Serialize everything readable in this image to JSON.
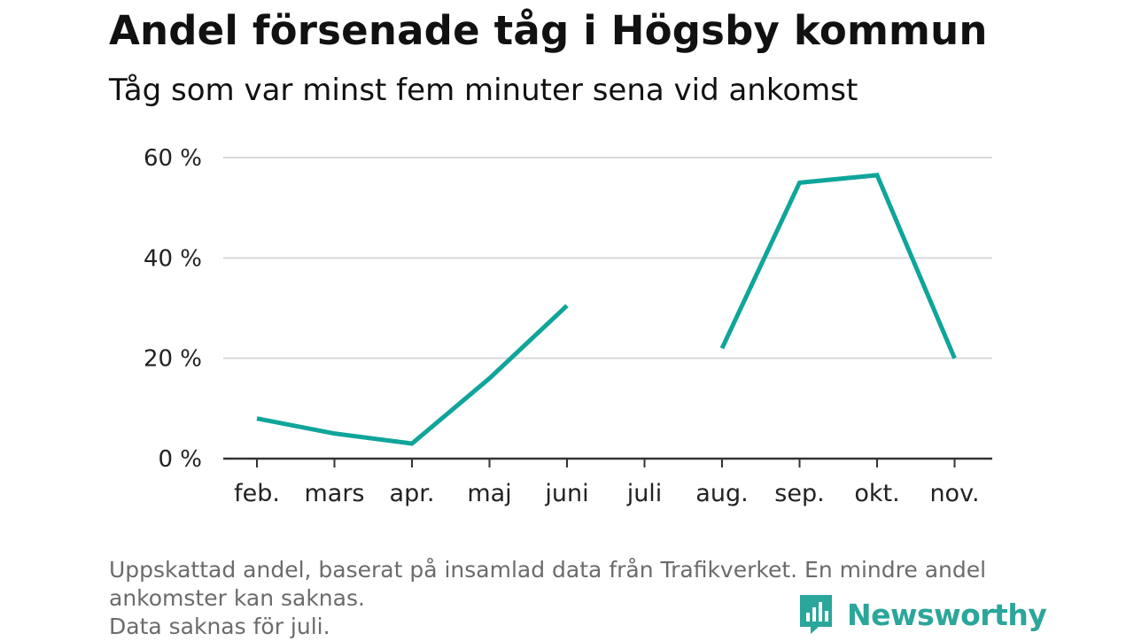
{
  "title": "Andel försenade tåg i Högsby kommun",
  "subtitle": "Tåg som var minst fem minuter sena vid ankomst",
  "notes": [
    "Uppskattad andel, baserat på insamlad data från Trafikverket. En mindre andel",
    "ankomster kan saknas.",
    "Data saknas för juli."
  ],
  "brand": {
    "name": "Newsworthy",
    "icon": "newsworthy-logo-icon",
    "color": "#2aa69a"
  },
  "colors": {
    "line": "#0fa59a",
    "grid": "#d9d9d9",
    "axis": "#333333"
  },
  "chart_data": {
    "type": "line",
    "categories": [
      "feb.",
      "mars",
      "apr.",
      "maj",
      "juni",
      "juli",
      "aug.",
      "sep.",
      "okt.",
      "nov."
    ],
    "series": [
      {
        "values": [
          8,
          5,
          3,
          16,
          30.5,
          null,
          22,
          55,
          56.5,
          20
        ]
      }
    ],
    "yticks": [
      "0 %",
      "20 %",
      "40 %",
      "60 %"
    ],
    "ytick_values": [
      0,
      20,
      40,
      60
    ],
    "ylim": [
      0,
      60
    ],
    "grid": true,
    "legend": "none",
    "title": "Andel försenade tåg i Högsby kommun",
    "subtitle": "Tåg som var minst fem minuter sena vid ankomst",
    "xlabel": "",
    "ylabel": ""
  }
}
